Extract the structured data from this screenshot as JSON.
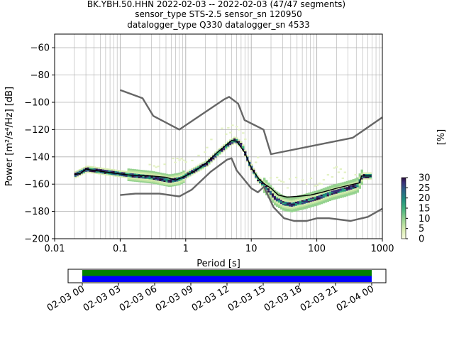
{
  "title": {
    "line1": "BK.YBH.50.HHN   2022-02-03 -- 2022-02-03  (47/47 segments)",
    "line2": "sensor_type STS-2.5 sensor_sn 120950",
    "line3": "datalogger_type Q330 datalogger_sn 4533"
  },
  "chart_data": [
    {
      "type": "heatmap",
      "title": "BK.YBH.50.HHN   2022-02-03 -- 2022-02-03  (47/47 segments)",
      "xlabel": "Period [s]",
      "ylabel": "Power [m²/s⁴/Hz] [dB]",
      "xscale": "log",
      "xlim": [
        0.01,
        1000
      ],
      "ylim": [
        -200,
        -50
      ],
      "grid": true,
      "x_ticks": [
        "0.01",
        "0.1",
        "1",
        "10",
        "100",
        "1000"
      ],
      "y_ticks": [
        "−60",
        "−80",
        "−100",
        "−120",
        "−140",
        "−160",
        "−180",
        "−200"
      ],
      "colorbar": {
        "label": "[%]",
        "range": [
          0,
          30
        ],
        "ticks": [
          "0",
          "5",
          "10",
          "15",
          "20",
          "25",
          "30"
        ]
      },
      "series": [
        {
          "role": "new_high_noise_model",
          "color": "#666666",
          "points": [
            [
              0.1,
              -91
            ],
            [
              0.22,
              -97
            ],
            [
              0.32,
              -110
            ],
            [
              0.8,
              -120
            ],
            [
              3.8,
              -98
            ],
            [
              4.6,
              -96
            ],
            [
              6.3,
              -101
            ],
            [
              7.9,
              -113
            ],
            [
              15.4,
              -120
            ],
            [
              20,
              -138
            ],
            [
              354,
              -126
            ],
            [
              1000,
              -111
            ]
          ]
        },
        {
          "role": "new_low_noise_model",
          "color": "#666666",
          "points": [
            [
              0.1,
              -168
            ],
            [
              0.17,
              -167
            ],
            [
              0.4,
              -167
            ],
            [
              0.8,
              -169
            ],
            [
              1.24,
              -164
            ],
            [
              2.4,
              -151
            ],
            [
              4.3,
              -142
            ],
            [
              5,
              -141
            ],
            [
              6,
              -150
            ],
            [
              10,
              -163
            ],
            [
              12.6,
              -166
            ],
            [
              15.6,
              -162
            ],
            [
              21.9,
              -177
            ],
            [
              31.6,
              -185
            ],
            [
              45,
              -187
            ],
            [
              70,
              -187
            ],
            [
              101,
              -185
            ],
            [
              154,
              -185
            ],
            [
              328,
              -187
            ],
            [
              600,
              -184
            ],
            [
              1000,
              -178
            ]
          ]
        },
        {
          "role": "median_psd",
          "color": "#000000",
          "points": [
            [
              0.02,
              -153
            ],
            [
              0.025,
              -152
            ],
            [
              0.03,
              -149
            ],
            [
              0.05,
              -150.5
            ],
            [
              0.08,
              -152
            ],
            [
              0.15,
              -153.5
            ],
            [
              0.3,
              -154
            ],
            [
              0.5,
              -155
            ],
            [
              0.7,
              -157
            ],
            [
              0.9,
              -155
            ],
            [
              1.3,
              -151
            ],
            [
              2,
              -145
            ],
            [
              3,
              -137
            ],
            [
              4,
              -132
            ],
            [
              5,
              -128
            ],
            [
              6,
              -128.5
            ],
            [
              8,
              -137
            ],
            [
              10,
              -148
            ],
            [
              13,
              -156
            ],
            [
              16,
              -160
            ],
            [
              20,
              -163
            ],
            [
              26,
              -168
            ],
            [
              35,
              -169.5
            ],
            [
              50,
              -169
            ],
            [
              80,
              -168
            ],
            [
              120,
              -166
            ],
            [
              200,
              -163
            ],
            [
              300,
              -161
            ],
            [
              450,
              -159
            ],
            [
              480,
              -154
            ],
            [
              680,
              -154
            ]
          ]
        },
        {
          "role": "psd_mode",
          "points": [
            [
              0.02,
              -153
            ],
            [
              0.03,
              -149
            ],
            [
              0.06,
              -151
            ],
            [
              0.12,
              -153
            ],
            [
              0.3,
              -155
            ],
            [
              0.55,
              -157.5
            ],
            [
              0.8,
              -156
            ],
            [
              1.2,
              -151
            ],
            [
              2,
              -145
            ],
            [
              3,
              -137
            ],
            [
              4.5,
              -130
            ],
            [
              5.5,
              -127.5
            ],
            [
              7,
              -132
            ],
            [
              9,
              -145
            ],
            [
              12,
              -156
            ],
            [
              16,
              -162
            ],
            [
              22,
              -170
            ],
            [
              30,
              -174
            ],
            [
              40,
              -175
            ],
            [
              60,
              -173
            ],
            [
              100,
              -170
            ],
            [
              170,
              -166
            ],
            [
              250,
              -164
            ],
            [
              400,
              -161
            ],
            [
              480,
              -154
            ],
            [
              680,
              -154
            ]
          ]
        }
      ]
    },
    {
      "type": "timeline",
      "x_ticks": [
        "02-03 00",
        "02-03 03",
        "02-03 06",
        "02-03 09",
        "02-03 12",
        "02-03 15",
        "02-03 18",
        "02-03 21",
        "02-04 00"
      ],
      "bars": [
        {
          "start_hour": 0,
          "end_hour": 24,
          "color": "#008000"
        },
        {
          "start_hour": 0,
          "end_hour": 24,
          "color": "#0000ff"
        }
      ]
    }
  ]
}
